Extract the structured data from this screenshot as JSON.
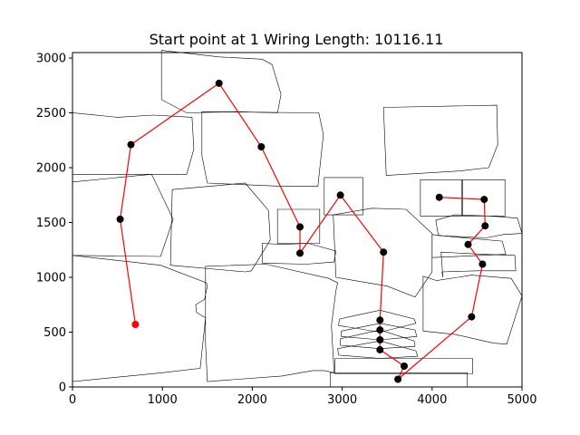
{
  "chart_data": {
    "type": "line",
    "title": "Start point at 1 Wiring Length: 10116.11",
    "xlabel": "",
    "ylabel": "",
    "xlim": [
      0,
      5000
    ],
    "ylim": [
      0,
      3050
    ],
    "xticks": [
      0,
      1000,
      2000,
      3000,
      4000,
      5000
    ],
    "yticks": [
      0,
      500,
      1000,
      1500,
      2000,
      2500,
      3000
    ],
    "grid": false,
    "colors": {
      "route": "#ff0000",
      "node": "#000000",
      "start": "#ff0000",
      "outline": "#000000"
    },
    "route": [
      [
        700,
        570
      ],
      [
        530,
        1530
      ],
      [
        650,
        2210
      ],
      [
        1630,
        2770
      ],
      [
        2100,
        2190
      ],
      [
        2530,
        1460
      ],
      [
        2530,
        1220
      ],
      [
        2980,
        1750
      ],
      [
        3460,
        1230
      ],
      [
        3420,
        610
      ],
      [
        3420,
        520
      ],
      [
        3420,
        430
      ],
      [
        3420,
        340
      ],
      [
        3690,
        190
      ],
      [
        3620,
        70
      ],
      [
        4440,
        640
      ],
      [
        4560,
        1120
      ],
      [
        4400,
        1300
      ],
      [
        4590,
        1470
      ],
      [
        4580,
        1710
      ],
      [
        4080,
        1730
      ]
    ],
    "start_index": 0,
    "outlines": [
      [
        [
          0,
          1940
        ],
        [
          1270,
          1940
        ],
        [
          1350,
          2170
        ],
        [
          1330,
          2460
        ],
        [
          900,
          2480
        ],
        [
          500,
          2460
        ],
        [
          0,
          2500
        ]
      ],
      [
        [
          990,
          3070
        ],
        [
          1630,
          3010
        ],
        [
          2110,
          2990
        ],
        [
          2220,
          2940
        ],
        [
          2320,
          2670
        ],
        [
          2280,
          2500
        ],
        [
          1840,
          2510
        ],
        [
          1270,
          2500
        ],
        [
          990,
          2620
        ]
      ],
      [
        [
          1440,
          2510
        ],
        [
          2740,
          2500
        ],
        [
          2790,
          2300
        ],
        [
          2730,
          1830
        ],
        [
          2330,
          1830
        ],
        [
          1500,
          1860
        ],
        [
          1440,
          2110
        ]
      ],
      [
        [
          0,
          1870
        ],
        [
          880,
          1940
        ],
        [
          1120,
          1530
        ],
        [
          980,
          1190
        ],
        [
          0,
          1200
        ]
      ],
      [
        [
          1110,
          1800
        ],
        [
          1920,
          1860
        ],
        [
          2180,
          1610
        ],
        [
          2200,
          1340
        ],
        [
          1990,
          1060
        ],
        [
          1920,
          1050
        ],
        [
          1090,
          1110
        ]
      ],
      [
        [
          0,
          1200
        ],
        [
          980,
          1110
        ],
        [
          1490,
          950
        ],
        [
          1500,
          920
        ],
        [
          1470,
          800
        ],
        [
          1370,
          750
        ],
        [
          1380,
          680
        ],
        [
          1480,
          630
        ],
        [
          1420,
          170
        ],
        [
          1000,
          130
        ],
        [
          0,
          50
        ]
      ],
      [
        [
          1480,
          1100
        ],
        [
          2150,
          1120
        ],
        [
          2850,
          990
        ],
        [
          2950,
          950
        ],
        [
          2930,
          880
        ],
        [
          2880,
          560
        ],
        [
          2910,
          130
        ],
        [
          2800,
          150
        ],
        [
          2670,
          150
        ],
        [
          2330,
          100
        ],
        [
          1500,
          50
        ],
        [
          1480,
          400
        ]
      ],
      [
        [
          2280,
          1620
        ],
        [
          2750,
          1620
        ],
        [
          2750,
          1310
        ],
        [
          2280,
          1310
        ]
      ],
      [
        [
          2800,
          1910
        ],
        [
          3230,
          1910
        ],
        [
          3230,
          1570
        ],
        [
          2800,
          1570
        ]
      ],
      [
        [
          2110,
          1310
        ],
        [
          2350,
          1300
        ],
        [
          2620,
          1310
        ],
        [
          2930,
          1240
        ],
        [
          2910,
          1140
        ],
        [
          2600,
          1120
        ],
        [
          2110,
          1130
        ]
      ],
      [
        [
          2900,
          1570
        ],
        [
          3330,
          1630
        ],
        [
          3710,
          1620
        ],
        [
          4000,
          1400
        ],
        [
          4000,
          1050
        ],
        [
          3810,
          820
        ],
        [
          3500,
          920
        ],
        [
          2930,
          1000
        ]
      ],
      [
        [
          3460,
          2550
        ],
        [
          4720,
          2570
        ],
        [
          4730,
          2210
        ],
        [
          4630,
          2000
        ],
        [
          4300,
          1970
        ],
        [
          3490,
          1930
        ]
      ],
      [
        [
          3870,
          1890
        ],
        [
          4330,
          1890
        ],
        [
          4330,
          1560
        ],
        [
          3870,
          1560
        ]
      ],
      [
        [
          4340,
          1890
        ],
        [
          4810,
          1890
        ],
        [
          4810,
          1560
        ],
        [
          4340,
          1560
        ]
      ],
      [
        [
          4040,
          1520
        ],
        [
          4250,
          1570
        ],
        [
          4640,
          1560
        ],
        [
          4950,
          1540
        ],
        [
          5000,
          1400
        ],
        [
          4790,
          1390
        ],
        [
          4600,
          1360
        ],
        [
          4070,
          1380
        ]
      ],
      [
        [
          4000,
          1390
        ],
        [
          4230,
          1370
        ],
        [
          4780,
          1330
        ],
        [
          4820,
          1210
        ],
        [
          4000,
          1180
        ]
      ],
      [
        [
          4100,
          1230
        ],
        [
          4560,
          1210
        ],
        [
          4920,
          1200
        ],
        [
          4930,
          1060
        ],
        [
          4500,
          1060
        ],
        [
          4110,
          1050
        ],
        [
          4120,
          1000
        ]
      ],
      [
        [
          3900,
          1010
        ],
        [
          4050,
          970
        ],
        [
          4440,
          1020
        ],
        [
          4880,
          990
        ],
        [
          5000,
          830
        ],
        [
          4830,
          390
        ],
        [
          4680,
          400
        ],
        [
          4250,
          480
        ],
        [
          3900,
          510
        ]
      ],
      [
        [
          2970,
          620
        ],
        [
          3420,
          700
        ],
        [
          3800,
          620
        ],
        [
          3820,
          580
        ],
        [
          3420,
          500
        ],
        [
          2960,
          560
        ]
      ],
      [
        [
          2990,
          510
        ],
        [
          3420,
          580
        ],
        [
          3810,
          520
        ],
        [
          3830,
          460
        ],
        [
          3420,
          430
        ],
        [
          2990,
          460
        ]
      ],
      [
        [
          2980,
          440
        ],
        [
          3420,
          520
        ],
        [
          3800,
          420
        ],
        [
          3810,
          370
        ],
        [
          3420,
          350
        ],
        [
          2980,
          380
        ]
      ],
      [
        [
          2950,
          350
        ],
        [
          3420,
          420
        ],
        [
          3820,
          330
        ],
        [
          3840,
          280
        ],
        [
          3420,
          260
        ],
        [
          2960,
          290
        ]
      ],
      [
        [
          2920,
          260
        ],
        [
          4450,
          260
        ],
        [
          4450,
          120
        ],
        [
          2920,
          120
        ]
      ],
      [
        [
          2870,
          130
        ],
        [
          4390,
          130
        ],
        [
          4390,
          0
        ],
        [
          2870,
          0
        ]
      ]
    ]
  }
}
